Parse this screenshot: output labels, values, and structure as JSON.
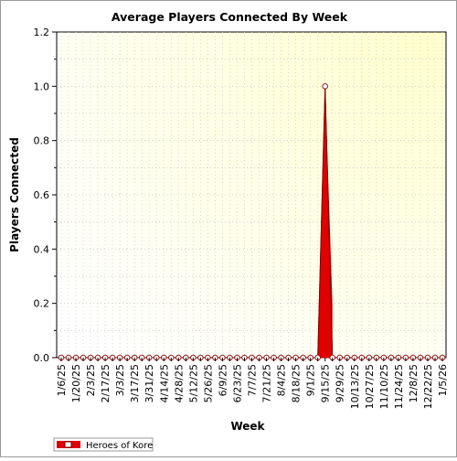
{
  "chart_data": {
    "type": "area",
    "title": "Average Players Connected By Week",
    "xlabel": "Week",
    "ylabel": "Players Connected",
    "ylim": [
      0,
      1.2
    ],
    "yticks": [
      "0.0",
      "0.2",
      "0.4",
      "0.6",
      "0.8",
      "1.0",
      "1.2"
    ],
    "xticks": [
      "1/6/25",
      "1/20/25",
      "2/3/25",
      "2/17/25",
      "3/3/25",
      "3/17/25",
      "3/31/25",
      "4/14/25",
      "4/28/25",
      "5/12/25",
      "5/26/25",
      "6/9/25",
      "6/23/25",
      "7/7/25",
      "7/21/25",
      "8/4/25",
      "8/18/25",
      "9/1/25",
      "9/15/25",
      "9/29/25",
      "10/13/25",
      "10/27/25",
      "11/10/25",
      "11/24/25",
      "12/8/25",
      "12/22/25",
      "1/5/26"
    ],
    "grid": true,
    "legend_position": "bottom-left",
    "series": [
      {
        "name": "Heroes of Kore",
        "color": "#e00000",
        "values": [
          0,
          0,
          0,
          0,
          0,
          0,
          0,
          0,
          0,
          0,
          0,
          0,
          0,
          0,
          0,
          0,
          0,
          0,
          0,
          0,
          0,
          0,
          0,
          0,
          0,
          0,
          0,
          0,
          0,
          0,
          0,
          0,
          0,
          0,
          0,
          0,
          1,
          0,
          0,
          0,
          0,
          0,
          0,
          0,
          0,
          0,
          0,
          0,
          0,
          0,
          0,
          0,
          0
        ]
      }
    ]
  }
}
